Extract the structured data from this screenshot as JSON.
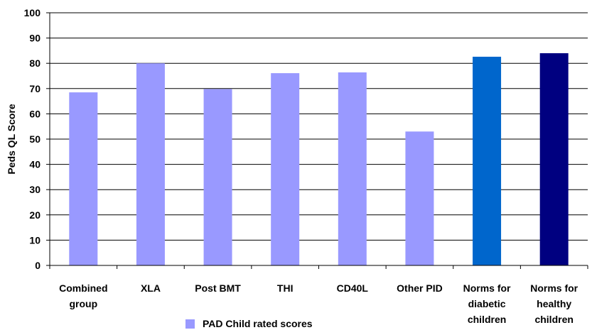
{
  "chart_data": {
    "type": "bar",
    "categories": [
      [
        "Combined",
        "group"
      ],
      [
        "XLA"
      ],
      [
        "Post BMT"
      ],
      [
        "THI"
      ],
      [
        "CD40L"
      ],
      [
        "Other PID"
      ],
      [
        "Norms for",
        "diabetic",
        "children"
      ],
      [
        "Norms for",
        "healthy",
        "children"
      ]
    ],
    "values": [
      68.5,
      80,
      69.8,
      76.1,
      76.4,
      53,
      82.6,
      84
    ],
    "bar_colors": [
      "#9999ff",
      "#9999ff",
      "#9999ff",
      "#9999ff",
      "#9999ff",
      "#9999ff",
      "#0066cc",
      "#000080"
    ],
    "ylabel": "Peds QL Score",
    "ylim": [
      0,
      100
    ],
    "yticks": [
      0,
      10,
      20,
      30,
      40,
      50,
      60,
      70,
      80,
      90,
      100
    ],
    "grid": true,
    "legend": {
      "placement": "bottom",
      "entries": [
        {
          "label": "PAD Child rated scores",
          "color": "#9999ff"
        }
      ]
    }
  }
}
